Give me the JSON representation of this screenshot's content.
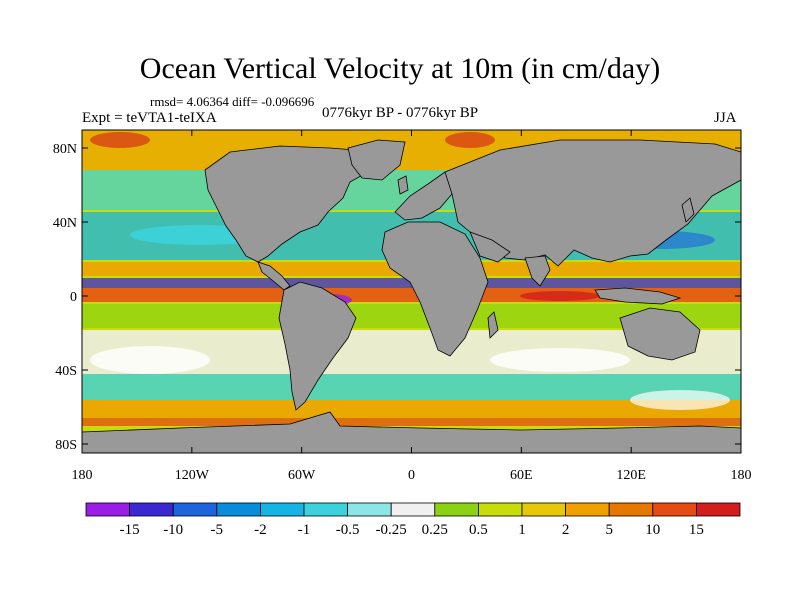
{
  "title": "Ocean Vertical Velocity at 10m (in cm/day)",
  "stats": "rmsd= 4.06364 diff= -0.096696",
  "experiment": "Expt = teVTA1-teIXA",
  "period": "0776kyr BP - 0776kyr BP",
  "season": "JJA",
  "axes": {
    "y_ticks": [
      {
        "label": "80N",
        "lat": 80
      },
      {
        "label": "40N",
        "lat": 40
      },
      {
        "label": "0",
        "lat": 0
      },
      {
        "label": "40S",
        "lat": -40
      },
      {
        "label": "80S",
        "lat": -80
      }
    ],
    "x_ticks": [
      {
        "label": "180",
        "lon": -180
      },
      {
        "label": "120W",
        "lon": -120
      },
      {
        "label": "60W",
        "lon": -60
      },
      {
        "label": "0",
        "lon": 0
      },
      {
        "label": "60E",
        "lon": 60
      },
      {
        "label": "120E",
        "lon": 120
      },
      {
        "label": "180",
        "lon": 180
      }
    ]
  },
  "colorbar": {
    "levels": [
      "-15",
      "-10",
      "-5",
      "-2",
      "-1",
      "-0.5",
      "-0.25",
      "0.25",
      "0.5",
      "1",
      "2",
      "5",
      "10",
      "15"
    ],
    "colors": [
      "#9a1ee6",
      "#3c28d2",
      "#1e64dc",
      "#0a8cdc",
      "#14b4e6",
      "#3cd2dc",
      "#8ce6e6",
      "#f0f0f0",
      "#8cd214",
      "#c8dc0a",
      "#e6c80a",
      "#f0a000",
      "#e67800",
      "#e64b14",
      "#d21e1e"
    ]
  },
  "map": {
    "ocean_colors": {
      "upwelling_strong": "#d21e1e",
      "upwelling": "#f0a000",
      "weak_positive": "#c8dc0a",
      "neutral": "#f0f0f0",
      "weak_negative": "#3cd2dc",
      "downwelling": "#1e64dc",
      "downwelling_strong": "#9a1ee6"
    },
    "land_color": "#999999"
  }
}
